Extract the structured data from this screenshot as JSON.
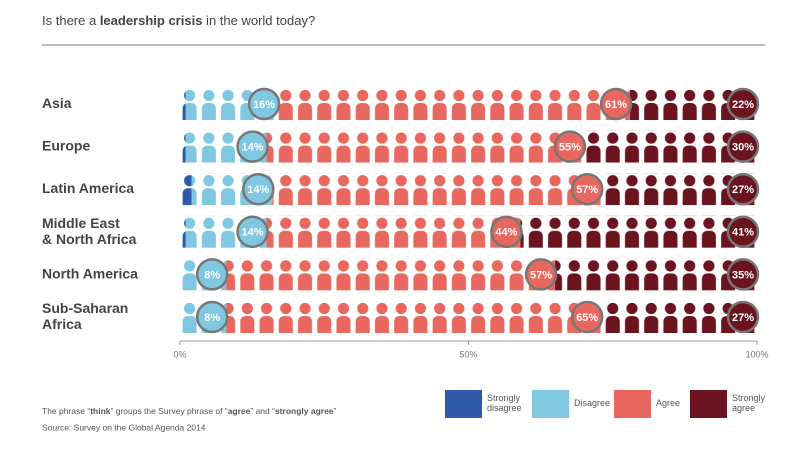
{
  "chart_data": {
    "type": "icon-stacked-bar",
    "title": [
      "Is there a ",
      "leadership crisis",
      " in the world today?"
    ],
    "categories": [
      "Asia",
      "Europe",
      "Latin America",
      "Middle East\n& North Africa",
      "North America",
      "Sub-Saharan\nAfrica"
    ],
    "series": [
      {
        "name": "Strongly disagree",
        "color": "#2e5aa8",
        "values": [
          1,
          1,
          2,
          1,
          0,
          0
        ]
      },
      {
        "name": "Disagree",
        "color": "#80c7e2",
        "values": [
          16,
          14,
          14,
          14,
          8,
          8
        ],
        "value_labels": [
          "16%",
          "14%",
          "14%",
          "14%",
          "8%",
          "8%"
        ]
      },
      {
        "name": "Agree",
        "color": "#e8675e",
        "values": [
          61,
          55,
          57,
          44,
          57,
          65
        ],
        "value_labels": [
          "61%",
          "55%",
          "57%",
          "44%",
          "57%",
          "65%"
        ]
      },
      {
        "name": "Strongly agree",
        "color": "#6b1420",
        "values": [
          22,
          30,
          27,
          41,
          35,
          27
        ],
        "value_labels": [
          "22%",
          "30%",
          "27%",
          "41%",
          "35%",
          "27%"
        ]
      }
    ],
    "xlim": [
      0,
      100
    ],
    "xticks": [
      {
        "value": 0,
        "label": "0%"
      },
      {
        "value": 50,
        "label": "50%"
      },
      {
        "value": 100,
        "label": "100%"
      }
    ],
    "footnote": [
      "The phrase “",
      "think",
      "” groups the Survey phrase of “",
      "agree",
      "” and “",
      "strongly agree",
      "”"
    ],
    "source": "Source: Survey on the Global Agenda 2014"
  }
}
